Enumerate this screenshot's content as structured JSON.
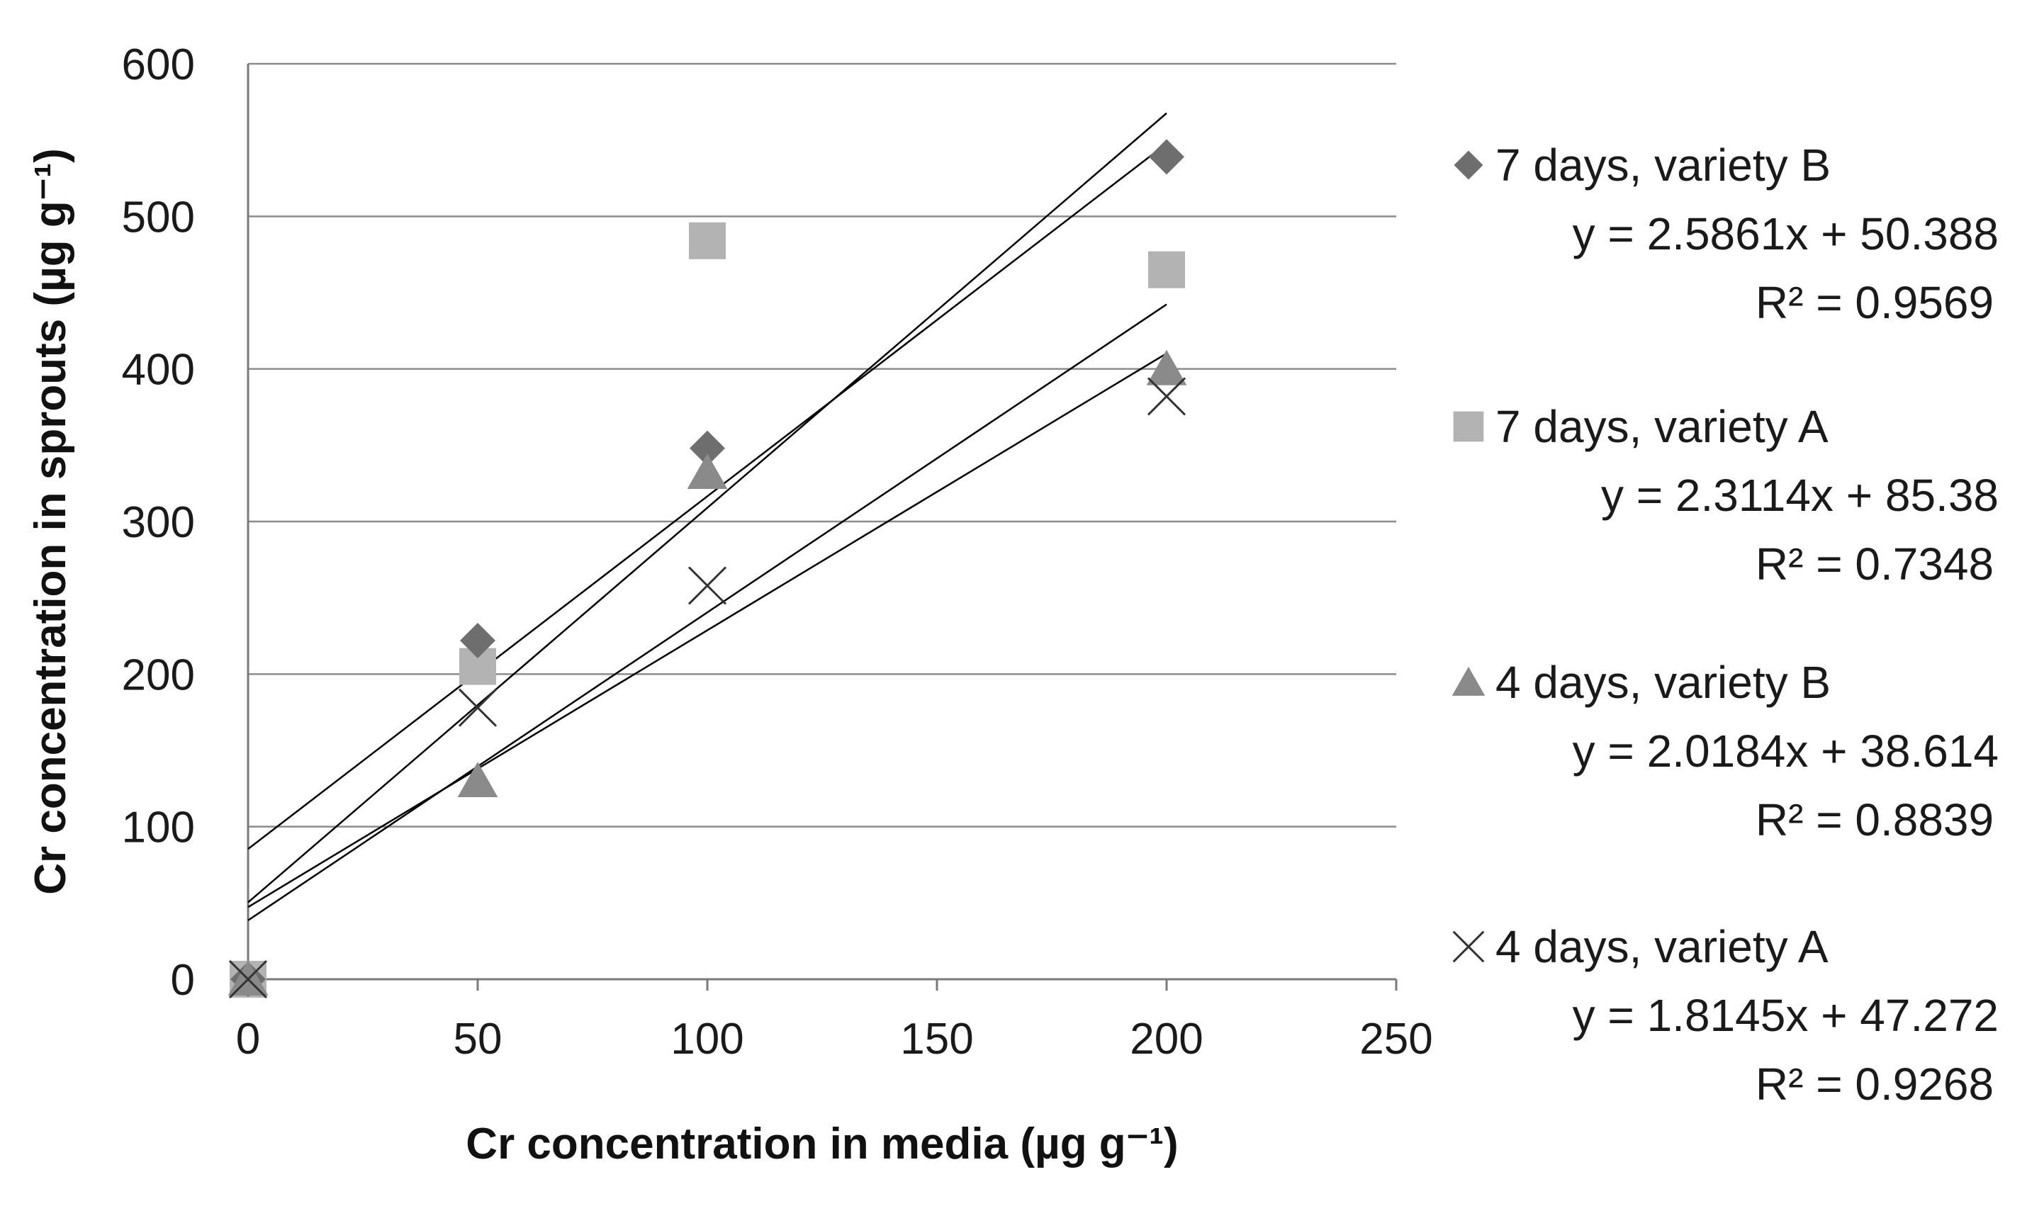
{
  "chart_data": {
    "type": "scatter",
    "title": "",
    "xlabel": "Cr concentration in media (µg g⁻¹)",
    "ylabel": "Cr concentration in sprouts (µg g⁻¹)",
    "xlim": [
      0,
      250
    ],
    "ylim": [
      0,
      600
    ],
    "x_ticks": [
      "0",
      "50",
      "100",
      "150",
      "200",
      "250"
    ],
    "y_ticks": [
      "0",
      "100",
      "200",
      "300",
      "400",
      "500",
      "600"
    ],
    "grid": "horizontal",
    "legend_position": "right",
    "trendline_color": "#000000",
    "series": [
      {
        "name": "7 days, variety B",
        "marker": "diamond",
        "color": "#6e6e6e",
        "x": [
          0,
          50,
          100,
          200
        ],
        "y": [
          0,
          222,
          348,
          539
        ],
        "trendline": {
          "slope": 2.5861,
          "intercept": 50.388
        },
        "equation": "y = 2.5861x + 50.388",
        "r2": "R² = 0.9569"
      },
      {
        "name": "7 days, variety A",
        "marker": "square",
        "color": "#b3b3b3",
        "x": [
          0,
          50,
          100,
          200
        ],
        "y": [
          0,
          205,
          484,
          465
        ],
        "trendline": {
          "slope": 2.3114,
          "intercept": 85.38
        },
        "equation": "y = 2.3114x + 85.38",
        "r2": "R² = 0.7348"
      },
      {
        "name": "4 days, variety B",
        "marker": "triangle",
        "color": "#8a8a8a",
        "x": [
          0,
          50,
          100,
          200
        ],
        "y": [
          0,
          130,
          332,
          400
        ],
        "trendline": {
          "slope": 2.0184,
          "intercept": 38.614
        },
        "equation": "y = 2.0184x + 38.614",
        "r2": "R² = 0.8839"
      },
      {
        "name": "4 days, variety A",
        "marker": "x",
        "color": "#333333",
        "x": [
          0,
          50,
          100,
          200
        ],
        "y": [
          0,
          178,
          258,
          382
        ],
        "trendline": {
          "slope": 1.8145,
          "intercept": 47.272
        },
        "equation": "y = 1.8145x + 47.272",
        "r2": "R² = 0.9268"
      }
    ]
  }
}
